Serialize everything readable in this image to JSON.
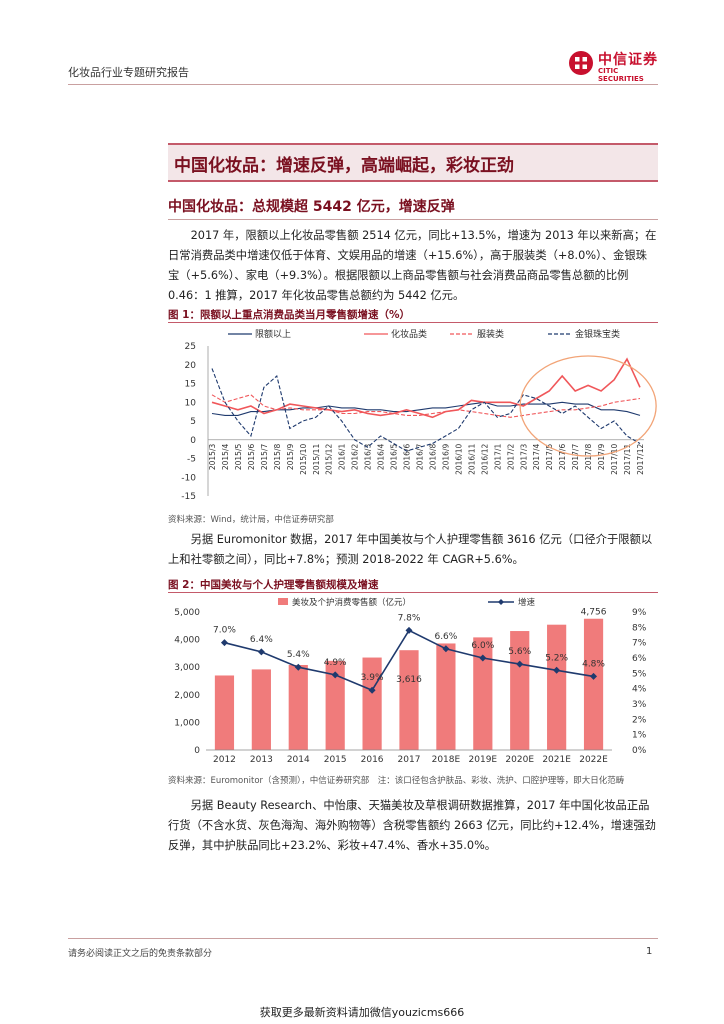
{
  "header": {
    "report_title": "化妆品行业专题研究报告",
    "logo_cn": "中信证券",
    "logo_en": "CITIC SECURITIES"
  },
  "banner_title": "中国化妆品：增速反弹，高端崛起，彩妆正劲",
  "section_title": "中国化妆品：总规模超 5442 亿元，增速反弹",
  "para1": "2017 年，限额以上化妆品零售额 2514 亿元，同比+13.5%，增速为 2013 年以来新高；在日常消费品类中增速仅低于体育、文娱用品的增速（+15.6%），高于服装类（+8.0%）、金银珠宝（+5.6%）、家电（+9.3%）。根据限额以上商品零售额与社会消费品商品零售总额的比例 0.46：1 推算，2017 年化妆品零售总额约为 5442 亿元。",
  "fig1": {
    "title": "图 1：限额以上重点消费品类当月零售额增速（%）",
    "source": "资料来源：Wind，统计局，中信证券研究部"
  },
  "para2": "另据 Euromonitor 数据，2017 年中国美妆与个人护理零售额 3616 亿元（口径介于限额以上和社零额之间），同比+7.8%；预测 2018-2022 年 CAGR+5.6%。",
  "fig2": {
    "title": "图 2：中国美妆与个人护理零售额规模及增速",
    "source": "资料来源：Euromonitor（含预测），中信证券研究部　注：该口径包含护肤品、彩妆、洗护、口腔护理等，即大日化范畴"
  },
  "para3": "另据 Beauty Research、中怡康、天猫美妆及草根调研数据推算，2017 年中国化妆品正品行货（不含水货、灰色海淘、海外购物等）含税零售额约 2663 亿元，同比约+12.4%，增速强劲反弹，其中护肤品同比+23.2%、彩妆+47.4%、香水+35.0%。",
  "footer": {
    "disclaimer": "请务必阅读正文之后的免责条款部分",
    "page": "1"
  },
  "bottom_note": "获取更多最新资料请加微信youzicms666",
  "chart_data": [
    {
      "type": "line",
      "title": "",
      "y_ticks": [
        "25",
        "20",
        "15",
        "10",
        "5",
        "0",
        "-5",
        "-10",
        "-15"
      ],
      "ylim": [
        -15,
        25
      ],
      "x_labels": [
        "2015/3",
        "2015/4",
        "2015/5",
        "2015/6",
        "2015/7",
        "2015/8",
        "2015/9",
        "2015/10",
        "2015/11",
        "2015/12",
        "2016/1",
        "2016/2",
        "2016/3",
        "2016/4",
        "2016/5",
        "2016/6",
        "2016/7",
        "2016/8",
        "2016/9",
        "2016/10",
        "2016/11",
        "2016/12",
        "2017/1",
        "2017/2",
        "2017/3",
        "2017/4",
        "2017/5",
        "2017/6",
        "2017/7",
        "2017/8",
        "2017/9",
        "2017/10",
        "2017/11",
        "2017/12"
      ],
      "series": [
        {
          "name": "限额以上",
          "color": "#1f3a6e",
          "style": "solid",
          "values": [
            7,
            6.5,
            6.5,
            7.5,
            7.5,
            8,
            8,
            8.5,
            8.5,
            9,
            8.5,
            8.5,
            8,
            8,
            7.5,
            7.5,
            8,
            8.5,
            8.5,
            9,
            9.5,
            10,
            9,
            9,
            9.5,
            9.5,
            9.5,
            10,
            9.5,
            9.5,
            8,
            8,
            7.5,
            6.5
          ]
        },
        {
          "name": "化妆品类",
          "color": "#f0575a",
          "style": "solid",
          "values": [
            10,
            9,
            8,
            9,
            7,
            8,
            9.5,
            9,
            8.5,
            8,
            7.5,
            8,
            7,
            6.5,
            7,
            8,
            7,
            6,
            7.5,
            8,
            10.5,
            10,
            10,
            10,
            9,
            11,
            13,
            17,
            13,
            14.5,
            13,
            16,
            21.5,
            14
          ]
        },
        {
          "name": "服装类",
          "color": "#f0575a",
          "style": "dashed",
          "values": [
            12,
            10,
            11,
            12,
            9,
            8,
            8.5,
            8,
            8,
            8,
            7,
            7,
            7.5,
            7.5,
            7,
            6.5,
            6.5,
            7,
            7.5,
            8,
            7.5,
            7,
            6.5,
            6,
            6.5,
            7,
            7.5,
            8,
            8,
            8.5,
            9,
            10,
            10.5,
            11
          ]
        },
        {
          "name": "金银珠宝类",
          "color": "#1f3a6e",
          "style": "dashed",
          "values": [
            19,
            10,
            5,
            1,
            14,
            17,
            3,
            5,
            6,
            9,
            5,
            0,
            -2,
            1,
            -1,
            -3,
            -2,
            -1,
            1,
            3,
            8,
            10,
            6,
            7,
            12,
            11,
            9,
            7,
            9,
            6,
            3,
            5,
            1,
            -1
          ]
        }
      ]
    },
    {
      "type": "bar",
      "categories": [
        "2012",
        "2013",
        "2014",
        "2015",
        "2016",
        "2017",
        "2018E",
        "2019E",
        "2020E",
        "2021E",
        "2022E"
      ],
      "bar_series": {
        "name": "美妆及个护消费零售额（亿元）",
        "color": "#f07b7b",
        "values": [
          2700,
          2920,
          3080,
          3230,
          3350,
          3616,
          3860,
          4080,
          4310,
          4540,
          4756
        ]
      },
      "line_series": {
        "name": "增速",
        "color": "#1f3a6e",
        "values": [
          7.0,
          6.4,
          5.4,
          4.9,
          3.9,
          7.8,
          6.6,
          6.0,
          5.6,
          5.2,
          4.8
        ]
      },
      "bar_value_labels": {
        "5": "3,616",
        "10": "4,756"
      },
      "line_value_labels": [
        "7.0%",
        "6.4%",
        "5.4%",
        "4.9%",
        "3.9%",
        "7.8%",
        "6.6%",
        "6.0%",
        "5.6%",
        "5.2%",
        "4.8%"
      ],
      "y_ticks_left": [
        "5,000",
        "4,000",
        "3,000",
        "2,000",
        "1,000",
        "0"
      ],
      "y_ticks_right": [
        "9%",
        "8%",
        "7%",
        "6%",
        "5%",
        "4%",
        "3%",
        "2%",
        "1%",
        "0%"
      ],
      "ylim_left": [
        0,
        5000
      ],
      "ylim_right": [
        0,
        9
      ]
    }
  ]
}
